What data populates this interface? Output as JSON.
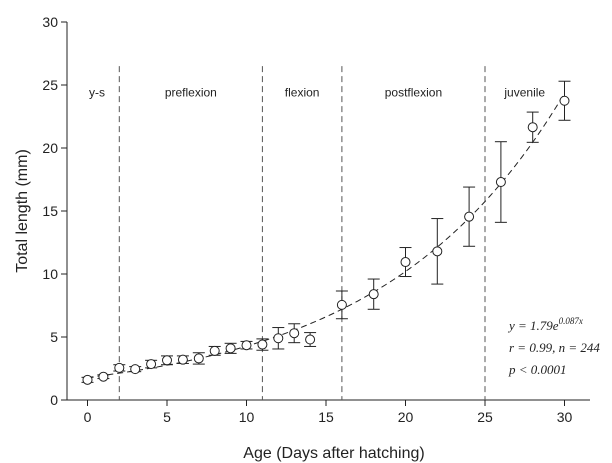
{
  "chart_data": {
    "type": "scatter",
    "xlabel": "Age (Days after hatching)",
    "ylabel": "Total length (mm)",
    "xlim": [
      -1,
      32
    ],
    "ylim": [
      0,
      30
    ],
    "x_ticks": [
      0,
      5,
      10,
      15,
      20,
      25,
      30
    ],
    "y_ticks": [
      0,
      5,
      10,
      15,
      20,
      25,
      30
    ],
    "grid": false,
    "series": [
      {
        "points": [
          {
            "x": 0,
            "y": 1.6,
            "err": 0.2
          },
          {
            "x": 1,
            "y": 1.85,
            "err": 0.15
          },
          {
            "x": 2,
            "y": 2.55,
            "err": 0.25
          },
          {
            "x": 3,
            "y": 2.45,
            "err": 0.2
          },
          {
            "x": 4,
            "y": 2.85,
            "err": 0.3
          },
          {
            "x": 5,
            "y": 3.15,
            "err": 0.35
          },
          {
            "x": 6,
            "y": 3.2,
            "err": 0.3
          },
          {
            "x": 7,
            "y": 3.3,
            "err": 0.45
          },
          {
            "x": 8,
            "y": 3.9,
            "err": 0.35
          },
          {
            "x": 9,
            "y": 4.1,
            "err": 0.4
          },
          {
            "x": 10,
            "y": 4.35,
            "err": 0.3
          },
          {
            "x": 11,
            "y": 4.4,
            "err": 0.45
          },
          {
            "x": 12,
            "y": 4.9,
            "err": 0.85
          },
          {
            "x": 13,
            "y": 5.3,
            "err": 0.75
          },
          {
            "x": 14,
            "y": 4.8,
            "err": 0.55
          },
          {
            "x": 16,
            "y": 7.55,
            "err": 1.1
          },
          {
            "x": 18,
            "y": 8.4,
            "err": 1.2
          },
          {
            "x": 20,
            "y": 10.95,
            "err": 1.15
          },
          {
            "x": 22,
            "y": 11.8,
            "err": 2.6
          },
          {
            "x": 24,
            "y": 14.55,
            "err": 2.35
          },
          {
            "x": 26,
            "y": 17.3,
            "err": 3.2
          },
          {
            "x": 28,
            "y": 21.65,
            "err": 1.2
          },
          {
            "x": 30,
            "y": 23.75,
            "err": 1.55
          }
        ]
      }
    ],
    "fit_curve": {
      "a": 1.79,
      "b": 0.087,
      "x_range": [
        0,
        30
      ],
      "style": "dashed"
    },
    "phase_dividers": [
      2,
      11,
      16,
      25
    ],
    "phases": [
      {
        "label": "y-s",
        "x": 0.6
      },
      {
        "label": "preflexion",
        "x": 6.5
      },
      {
        "label": "flexion",
        "x": 13.5
      },
      {
        "label": "postflexion",
        "x": 20.5
      },
      {
        "label": "juvenile",
        "x": 27.5
      }
    ],
    "annotation": {
      "line1_base": "y = 1.79e",
      "line1_exp": "0.087x",
      "line2": "r = 0.99, n = 244",
      "line3": "p < 0.0001"
    }
  }
}
